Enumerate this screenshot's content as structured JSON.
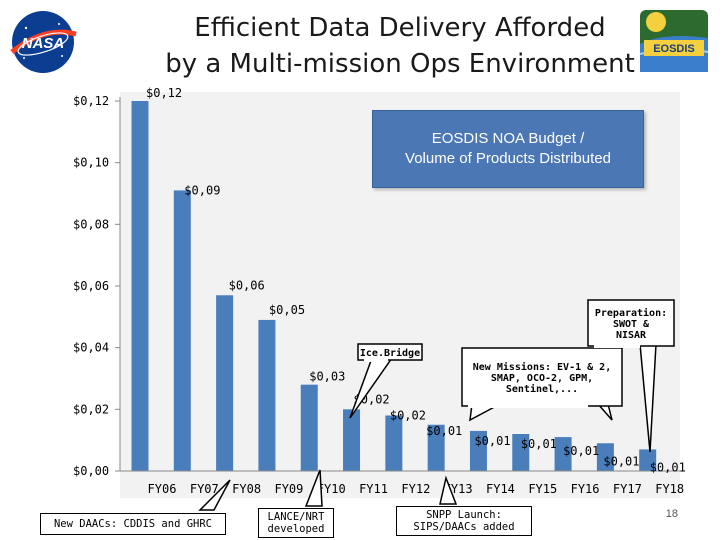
{
  "slide": {
    "title_line1": "Efficient Data Delivery Afforded",
    "title_line2": "by a Multi-mission Ops Environment",
    "page_number": "18",
    "logo_left_text": "NASA",
    "logo_right_text": "EOSDIS"
  },
  "chart_data": {
    "type": "bar",
    "title": "EOSDIS NOA Budget / Volume of Products Distributed",
    "title_lines": [
      "EOSDIS NOA Budget /",
      "Volume of Products Distributed"
    ],
    "categories": [
      "FY06",
      "FY07",
      "FY08",
      "FY09",
      "FY10",
      "FY11",
      "FY12",
      "FY13",
      "FY14",
      "FY15",
      "FY16",
      "FY17",
      "FY18"
    ],
    "values": [
      0.12,
      0.091,
      0.057,
      0.049,
      0.028,
      0.02,
      0.018,
      0.015,
      0.013,
      0.012,
      0.011,
      0.009,
      0.007
    ],
    "data_labels": [
      "$0,12",
      "$0,09",
      "$0,06",
      "$0,05",
      "$0,03",
      "$0,02",
      "$0,02",
      "$0,01",
      "$0,01",
      "$0,01",
      "$0,01",
      "$0,01",
      "$0,01"
    ],
    "ylim": [
      0,
      0.12
    ],
    "yticks": [
      0,
      0.02,
      0.04,
      0.06,
      0.08,
      0.1,
      0.12
    ],
    "ytick_labels": [
      "$0,00",
      "$0,02",
      "$0,04",
      "$0,06",
      "$0,08",
      "$0,10",
      "$0,12"
    ],
    "bar_color": "#4a7ebb",
    "plot_background": "#f2f2f2",
    "grid": false,
    "annotations": {
      "icebridge": "Ice.Bridge",
      "preparation": [
        "Preparation:",
        "SWOT &",
        "NISAR"
      ],
      "new_missions": [
        "New Missions: EV-1 & 2,",
        "SMAP, OCO-2, GPM,",
        "Sentinel,..."
      ],
      "new_daacs": "New DAACs: CDDIS and GHRC",
      "lance": [
        "LANCE/NRT",
        "developed"
      ],
      "snpp": [
        "SNPP Launch:",
        "SIPS/DAACs added"
      ]
    }
  }
}
